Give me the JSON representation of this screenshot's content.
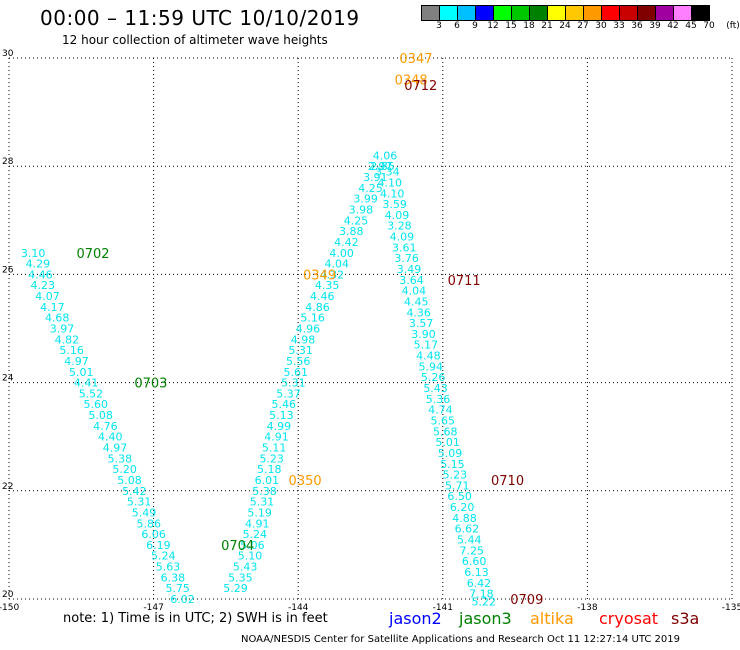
{
  "header": {
    "title": "00:00 – 11:59 UTC 10/10/2019",
    "subtitle": "12 hour collection of altimeter wave heights"
  },
  "color_scale": {
    "colors": [
      "#808080",
      "#00ffff",
      "#00bfff",
      "#0000ff",
      "#00ff00",
      "#00c800",
      "#008000",
      "#ffff00",
      "#ffc800",
      "#ff9900",
      "#ff0000",
      "#c80000",
      "#800000",
      "#a000a0",
      "#ff80ff",
      "#000000"
    ],
    "labels": [
      "3",
      "6",
      "9",
      "12",
      "15",
      "18",
      "21",
      "24",
      "27",
      "30",
      "33",
      "36",
      "39",
      "42",
      "45",
      "70",
      "(ft)"
    ]
  },
  "note": "note: 1) Time is in UTC; 2) SWH is in feet",
  "satellites": [
    {
      "name": "jason2",
      "color": "#0000ff"
    },
    {
      "name": "jason3",
      "color": "#008000"
    },
    {
      "name": "altika",
      "color": "#ff9900"
    },
    {
      "name": "cryosat",
      "color": "#ff0000"
    },
    {
      "name": "s3a",
      "color": "#800000"
    }
  ],
  "footer": "NOAA/NESDIS Center for Satellite Applications and Research    Oct 11 12:27:14 UTC 2019",
  "chart_data": {
    "type": "scatter",
    "xlim": [
      -150,
      -135
    ],
    "ylim": [
      20,
      30
    ],
    "x_ticks": [
      "-150",
      "-147",
      "-144",
      "-141",
      "-138",
      "-135"
    ],
    "y_ticks": [
      "20",
      "22",
      "24",
      "26",
      "28",
      "30"
    ],
    "grid": true,
    "point_color": "#00e5ee",
    "series": [
      {
        "points": [
          [
            -149.5,
            26.4,
            "3.10"
          ],
          [
            -149.4,
            26.2,
            "4.29"
          ],
          [
            -149.35,
            26.0,
            "4.46"
          ],
          [
            -149.3,
            25.8,
            "4.23"
          ],
          [
            -149.2,
            25.6,
            "4.07"
          ],
          [
            -149.1,
            25.4,
            "4.17"
          ],
          [
            -149.0,
            25.2,
            "4.68"
          ],
          [
            -148.9,
            25.0,
            "3.97"
          ],
          [
            -148.8,
            24.8,
            "4.82"
          ],
          [
            -148.7,
            24.6,
            "5.16"
          ],
          [
            -148.6,
            24.4,
            "4.97"
          ],
          [
            -148.5,
            24.2,
            "5.01"
          ],
          [
            -148.4,
            24.0,
            "4.41"
          ],
          [
            -148.3,
            23.8,
            "5.52"
          ],
          [
            -148.2,
            23.6,
            "5.60"
          ],
          [
            -148.1,
            23.4,
            "5.08"
          ],
          [
            -148.0,
            23.2,
            "4.76"
          ],
          [
            -147.9,
            23.0,
            "4.40"
          ],
          [
            -147.8,
            22.8,
            "4.97"
          ],
          [
            -147.7,
            22.6,
            "5.38"
          ],
          [
            -147.6,
            22.4,
            "5.20"
          ],
          [
            -147.5,
            22.2,
            "5.08"
          ],
          [
            -147.4,
            22.0,
            "5.42"
          ],
          [
            -147.3,
            21.8,
            "5.31"
          ],
          [
            -147.2,
            21.6,
            "5.49"
          ],
          [
            -147.1,
            21.4,
            "5.86"
          ],
          [
            -147.0,
            21.2,
            "6.06"
          ],
          [
            -146.9,
            21.0,
            "6.19"
          ],
          [
            -146.8,
            20.8,
            "5.24"
          ],
          [
            -146.7,
            20.6,
            "5.63"
          ],
          [
            -146.6,
            20.4,
            "6.38"
          ],
          [
            -146.5,
            20.2,
            "5.75"
          ],
          [
            -146.4,
            20.0,
            "6.02"
          ]
        ]
      },
      {
        "points": [
          [
            -145.3,
            20.2,
            "5.29"
          ],
          [
            -145.2,
            20.4,
            "5.35"
          ],
          [
            -145.1,
            20.6,
            "5.43"
          ],
          [
            -145.0,
            20.8,
            "5.10"
          ],
          [
            -144.95,
            21.0,
            "5.06"
          ],
          [
            -144.9,
            21.2,
            "5.24"
          ],
          [
            -144.85,
            21.4,
            "4.91"
          ],
          [
            -144.8,
            21.6,
            "5.19"
          ],
          [
            -144.75,
            21.8,
            "5.31"
          ],
          [
            -144.7,
            22.0,
            "5.38"
          ],
          [
            -144.65,
            22.2,
            "6.01"
          ],
          [
            -144.6,
            22.4,
            "5.18"
          ],
          [
            -144.55,
            22.6,
            "5.23"
          ],
          [
            -144.5,
            22.8,
            "5.11"
          ],
          [
            -144.45,
            23.0,
            "4.91"
          ],
          [
            -144.4,
            23.2,
            "4.99"
          ],
          [
            -144.35,
            23.4,
            "5.13"
          ],
          [
            -144.3,
            23.6,
            "5.46"
          ],
          [
            -144.2,
            23.8,
            "5.37"
          ],
          [
            -144.1,
            24.0,
            "5.31"
          ],
          [
            -144.05,
            24.2,
            "5.61"
          ],
          [
            -144.0,
            24.4,
            "5.56"
          ],
          [
            -143.95,
            24.6,
            "5.31"
          ],
          [
            -143.9,
            24.8,
            "4.98"
          ],
          [
            -143.8,
            25.0,
            "4.96"
          ],
          [
            -143.7,
            25.2,
            "5.16"
          ],
          [
            -143.6,
            25.4,
            "4.86"
          ],
          [
            -143.5,
            25.6,
            "4.46"
          ],
          [
            -143.4,
            25.8,
            "4.35"
          ],
          [
            -143.3,
            26.0,
            "4.32"
          ],
          [
            -143.2,
            26.2,
            "4.04"
          ],
          [
            -143.1,
            26.4,
            "4.00"
          ],
          [
            -143.0,
            26.6,
            "4.42"
          ],
          [
            -142.9,
            26.8,
            "3.88"
          ],
          [
            -142.8,
            27.0,
            "4.25"
          ],
          [
            -142.7,
            27.2,
            "3.98"
          ],
          [
            -142.6,
            27.4,
            "3.99"
          ],
          [
            -142.5,
            27.6,
            "4.25"
          ],
          [
            -142.4,
            27.8,
            "3.91"
          ],
          [
            -142.3,
            28.0,
            "2.97"
          ],
          [
            -142.2,
            28.2,
            "4.06"
          ]
        ]
      },
      {
        "points": [
          [
            -142.25,
            28.0,
            "2.85"
          ],
          [
            -142.15,
            27.9,
            "3.34"
          ],
          [
            -142.1,
            27.7,
            "4.10"
          ],
          [
            -142.05,
            27.5,
            "4.10"
          ],
          [
            -142.0,
            27.3,
            "3.59"
          ],
          [
            -141.95,
            27.1,
            "4.09"
          ],
          [
            -141.9,
            26.9,
            "3.28"
          ],
          [
            -141.85,
            26.7,
            "4.09"
          ],
          [
            -141.8,
            26.5,
            "3.61"
          ],
          [
            -141.75,
            26.3,
            "3.76"
          ],
          [
            -141.7,
            26.1,
            "3.49"
          ],
          [
            -141.65,
            25.9,
            "3.64"
          ],
          [
            -141.6,
            25.7,
            "4.04"
          ],
          [
            -141.55,
            25.5,
            "4.45"
          ],
          [
            -141.5,
            25.3,
            "4.36"
          ],
          [
            -141.45,
            25.1,
            "3.57"
          ],
          [
            -141.4,
            24.9,
            "3.90"
          ],
          [
            -141.35,
            24.7,
            "5.17"
          ],
          [
            -141.3,
            24.5,
            "4.48"
          ],
          [
            -141.25,
            24.3,
            "5.94"
          ],
          [
            -141.2,
            24.1,
            "5.26"
          ],
          [
            -141.15,
            23.9,
            "5.43"
          ],
          [
            -141.1,
            23.7,
            "5.36"
          ],
          [
            -141.05,
            23.5,
            "4.74"
          ],
          [
            -141.0,
            23.3,
            "5.65"
          ],
          [
            -140.95,
            23.1,
            "5.68"
          ],
          [
            -140.9,
            22.9,
            "5.01"
          ],
          [
            -140.85,
            22.7,
            "5.09"
          ],
          [
            -140.8,
            22.5,
            "5.15"
          ],
          [
            -140.75,
            22.3,
            "5.23"
          ],
          [
            -140.7,
            22.1,
            "5.71"
          ],
          [
            -140.65,
            21.9,
            "6.50"
          ],
          [
            -140.6,
            21.7,
            "6.20"
          ],
          [
            -140.55,
            21.5,
            "4.88"
          ],
          [
            -140.5,
            21.3,
            "6.62"
          ],
          [
            -140.45,
            21.1,
            "5.44"
          ],
          [
            -140.4,
            20.9,
            "7.25"
          ],
          [
            -140.35,
            20.7,
            "6.60"
          ],
          [
            -140.3,
            20.5,
            "6.13"
          ],
          [
            -140.25,
            20.3,
            "6.42"
          ],
          [
            -140.2,
            20.1,
            "7.18"
          ],
          [
            -140.15,
            19.95,
            "5.22"
          ]
        ]
      }
    ],
    "time_labels": [
      {
        "x": -148.6,
        "y": 26.4,
        "text": "0702",
        "color": "#008000"
      },
      {
        "x": -147.4,
        "y": 24.0,
        "text": "0703",
        "color": "#008000"
      },
      {
        "x": -145.6,
        "y": 21.0,
        "text": "0704",
        "color": "#008000"
      },
      {
        "x": -143.9,
        "y": 26.0,
        "text": "0349",
        "color": "#ff9900"
      },
      {
        "x": -144.2,
        "y": 22.2,
        "text": "0350",
        "color": "#ff9900"
      },
      {
        "x": -141.9,
        "y": 30.0,
        "text": "0347",
        "color": "#ff9900"
      },
      {
        "x": -142.0,
        "y": 29.6,
        "text": "0348",
        "color": "#ff9900"
      },
      {
        "x": -141.8,
        "y": 29.5,
        "text": "0712",
        "color": "#800000"
      },
      {
        "x": -140.9,
        "y": 25.9,
        "text": "0711",
        "color": "#800000"
      },
      {
        "x": -140.0,
        "y": 22.2,
        "text": "0710",
        "color": "#800000"
      },
      {
        "x": -139.6,
        "y": 20.0,
        "text": "0709",
        "color": "#800000"
      }
    ]
  }
}
